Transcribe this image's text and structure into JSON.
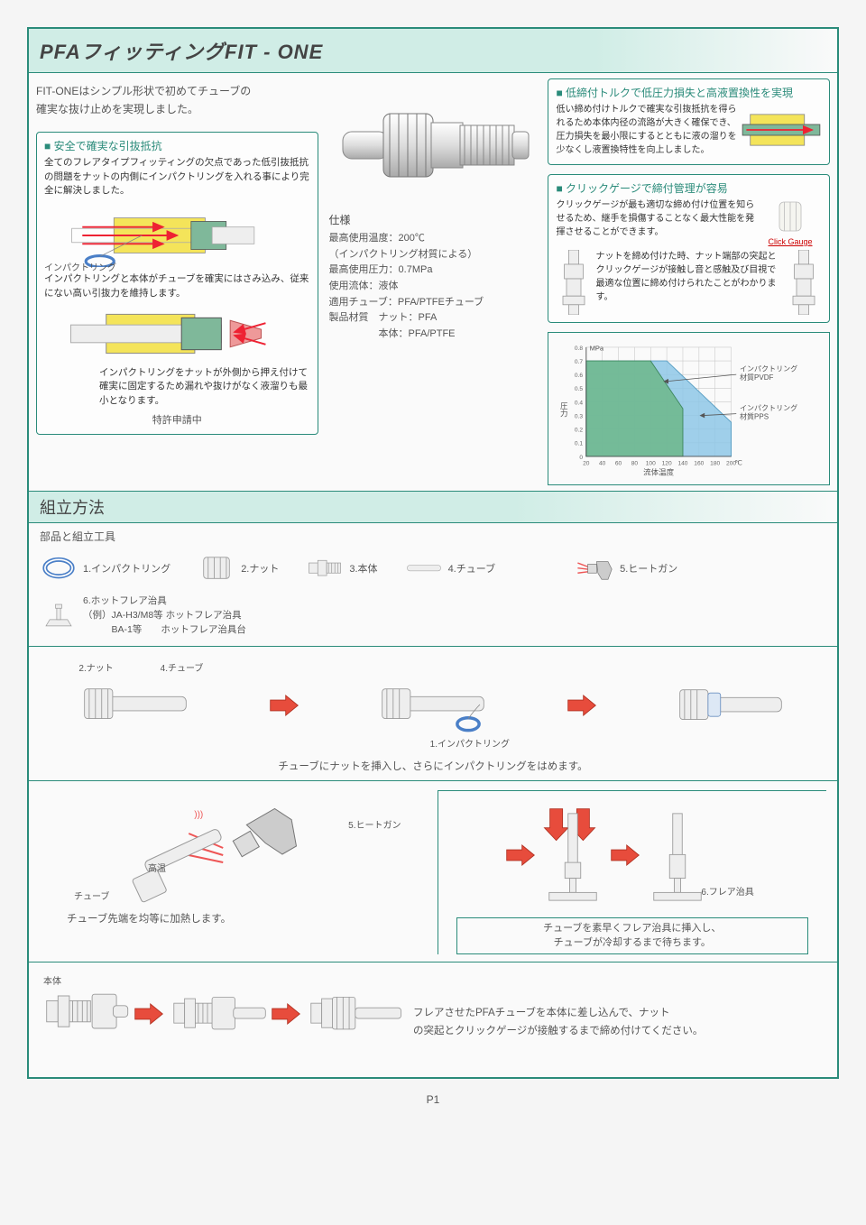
{
  "title": "PFAフィッティングFIT - ONE",
  "intro_l1": "FIT-ONEはシンプル形状で初めてチューブの",
  "intro_l2": "確実な抜け止めを実現しました。",
  "featureA": {
    "title": "■ 安全で確実な引抜抵抗",
    "body": "全てのフレアタイプフィッティングの欠点であった低引抜抵抗の問題をナットの内側にインパクトリングを入れる事により完全に解決しました。",
    "ring_label": "インパクトリング",
    "sub1": "インパクトリングと本体がチューブを確実にはさみ込み、従来にない高い引抜力を維持します。",
    "sub2": "インパクトリングをナットが外側から押え付けて確実に固定するため漏れや抜けがなく液溜りも最小となります。",
    "patent": "特許申請中"
  },
  "spec": {
    "heading": "仕様",
    "l1": "最高使用温度：200℃",
    "l2": "（インパクトリング材質による）",
    "l3": "最高使用圧力：0.7MPa",
    "l4": "使用流体：液体",
    "l5": "適用チューブ：PFA/PTFEチューブ",
    "l6": "製品材質　ナット：PFA",
    "l7": "　　　　　本体：PFA/PTFE"
  },
  "featureB": {
    "title": "■ 低締付トルクで低圧力損失と高液置換性を実現",
    "body": "低い締め付けトルクで確実な引抜抵抗を得られるため本体内径の流路が大きく確保でき、圧力損失を最小限にするとともに液の溜りを少なくし液置換特性を向上しました。"
  },
  "featureC": {
    "title": "■ クリックゲージで締付管理が容易",
    "body1": "クリックゲージが最も適切な締め付け位置を知らせるため、継手を損傷することなく最大性能を発揮させることができます。",
    "click_label": "Click Gauge",
    "body2": "ナットを締め付けた時、ナット端部の突起とクリックゲージが接触し音と感触及び目視で最適な位置に締め付けられたことがわかります。"
  },
  "chart": {
    "y_label": "圧力",
    "y_unit": "MPa",
    "x_label": "流体温度",
    "x_unit": "℃",
    "y_ticks": [
      "0",
      "0.1",
      "0.2",
      "0.3",
      "0.4",
      "0.5",
      "0.6",
      "0.7",
      "0.8"
    ],
    "x_ticks": [
      "20",
      "40",
      "60",
      "80",
      "100",
      "120",
      "140",
      "160",
      "180",
      "200"
    ],
    "series1_label": "インパクトリング材質PVDF",
    "series2_label": "インパクトリング材質PPS",
    "series1_color": "#6fb88f",
    "series2_color": "#8ec7e6",
    "grid_color": "#c9c9c9",
    "series1": [
      [
        20,
        0.7
      ],
      [
        100,
        0.7
      ],
      [
        140,
        0.35
      ],
      [
        140,
        0
      ]
    ],
    "series2": [
      [
        20,
        0.7
      ],
      [
        120,
        0.7
      ],
      [
        200,
        0.25
      ],
      [
        200,
        0
      ]
    ]
  },
  "assembly_title": "組立方法",
  "parts_title": "部品と組立工具",
  "parts": {
    "p1": "1.インパクトリング",
    "p2": "2.ナット",
    "p3": "3.本体",
    "p4": "4.チューブ",
    "p5": "5.ヒートガン",
    "p6": "6.ホットフレア治具",
    "p6_ex1": "（例）JA-H3/M8等 ホットフレア治具",
    "p6_ex2": "　　　BA-1等　　ホットフレア治具台"
  },
  "step1": {
    "l_nut": "2.ナット",
    "l_tube": "4.チューブ",
    "l_ring": "1.インパクトリング",
    "caption": "チューブにナットを挿入し、さらにインパクトリングをはめます。"
  },
  "step2": {
    "l_heat": "5.ヒートガン",
    "l_hot": "高温",
    "l_tube": "チューブ",
    "caption_l": "チューブ先端を均等に加熱します。",
    "l_jig": "6.フレア治具",
    "caption_r1": "チューブを素早くフレア治具に挿入し、",
    "caption_r2": "チューブが冷却するまで待ちます。"
  },
  "step3": {
    "l_body": "本体",
    "text1": "フレアさせたPFAチューブを本体に差し込んで、ナット",
    "text2": "の突起とクリックゲージが接触するまで締め付けてください。"
  },
  "page_num": "P1"
}
